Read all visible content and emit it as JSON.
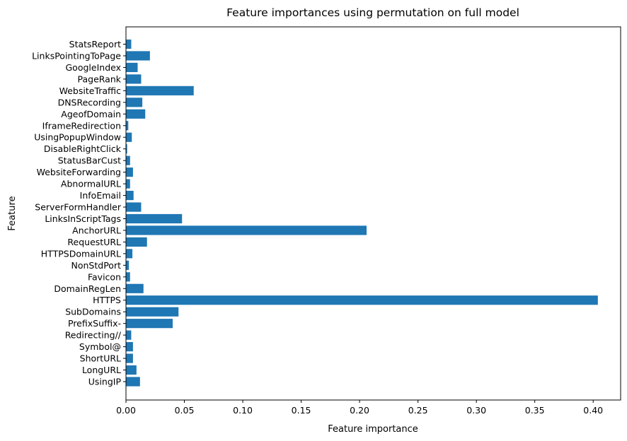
{
  "chart_data": {
    "type": "bar",
    "orientation": "horizontal",
    "title": "Feature importances using permutation on full model",
    "xlabel": "Feature importance",
    "ylabel": "Feature",
    "xlim": [
      0,
      0.4235
    ],
    "xticks": [
      "0.00",
      "0.05",
      "0.10",
      "0.15",
      "0.20",
      "0.25",
      "0.30",
      "0.35",
      "0.40"
    ],
    "xtick_values": [
      0,
      0.05,
      0.1,
      0.15,
      0.2,
      0.25,
      0.3,
      0.35,
      0.4
    ],
    "grid": false,
    "bar_color": "#1f77b4",
    "categories": [
      "UsingIP",
      "LongURL",
      "ShortURL",
      "Symbol@",
      "Redirecting//",
      "PrefixSuffix-",
      "SubDomains",
      "HTTPS",
      "DomainRegLen",
      "Favicon",
      "NonStdPort",
      "HTTPSDomainURL",
      "RequestURL",
      "AnchorURL",
      "LinksInScriptTags",
      "ServerFormHandler",
      "InfoEmail",
      "AbnormalURL",
      "WebsiteForwarding",
      "StatusBarCust",
      "DisableRightClick",
      "UsingPopupWindow",
      "IframeRedirection",
      "AgeofDomain",
      "DNSRecording",
      "WebsiteTraffic",
      "PageRank",
      "GoogleIndex",
      "LinksPointingToPage",
      "StatsReport"
    ],
    "values": [
      0.012,
      0.009,
      0.006,
      0.006,
      0.0045,
      0.04,
      0.045,
      0.404,
      0.015,
      0.0035,
      0.0025,
      0.0055,
      0.018,
      0.206,
      0.048,
      0.013,
      0.0065,
      0.0035,
      0.006,
      0.0035,
      0.001,
      0.005,
      0.002,
      0.0165,
      0.014,
      0.058,
      0.013,
      0.01,
      0.0205,
      0.0045
    ]
  }
}
